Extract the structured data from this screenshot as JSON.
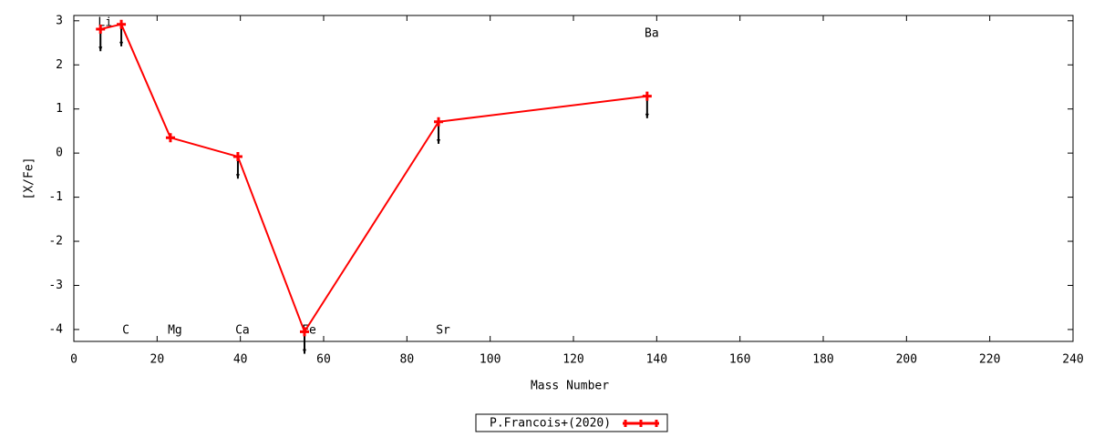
{
  "chart_data": {
    "type": "line",
    "xlabel": "Mass Number",
    "ylabel": "[X/Fe]",
    "x": [
      6.4,
      11.4,
      23.2,
      39.4,
      55.4,
      87.6,
      137.7
    ],
    "point_labels": [
      "Li",
      "C",
      "Mg",
      "Ca",
      "Fe",
      "Sr",
      "Ba"
    ],
    "series": [
      {
        "name": "P.Francois+(2020)",
        "color": "#ff0000",
        "values": [
          2.81,
          2.92,
          0.35,
          -0.08,
          -4.05,
          0.71,
          1.29
        ],
        "errors": [
          0.5,
          0.5,
          null,
          0.5,
          0.5,
          0.5,
          0.5
        ],
        "error_color": "#000000"
      }
    ],
    "xlim": [
      0,
      240
    ],
    "xticks": [
      0,
      20,
      40,
      60,
      80,
      100,
      120,
      140,
      160,
      180,
      200,
      220,
      240
    ],
    "ylim": [
      -4.27,
      3.12
    ],
    "yticks": [
      -4,
      -3,
      -2,
      -1,
      0,
      1,
      2,
      3
    ],
    "grid": false,
    "legend": "bottom"
  }
}
